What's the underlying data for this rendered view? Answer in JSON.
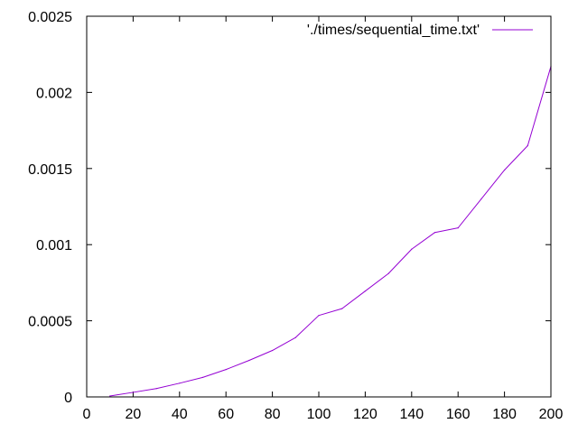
{
  "chart_data": {
    "type": "line",
    "title": "",
    "xlabel": "",
    "ylabel": "",
    "xlim": [
      0,
      200
    ],
    "ylim": [
      0,
      0.0025
    ],
    "grid": false,
    "legend_position": "top-right",
    "x_ticks": [
      0,
      20,
      40,
      60,
      80,
      100,
      120,
      140,
      160,
      180,
      200
    ],
    "x_tick_labels": [
      "0",
      "20",
      "40",
      "60",
      "80",
      "100",
      "120",
      "140",
      "160",
      "180",
      "200"
    ],
    "y_ticks": [
      0,
      0.0005,
      0.001,
      0.0015,
      0.002,
      0.0025
    ],
    "y_tick_labels": [
      "0",
      "0.0005",
      "0.001",
      "0.0015",
      "0.002",
      "0.0025"
    ],
    "series": [
      {
        "name": "'./times/sequential_time.txt'",
        "color": "#9400d3",
        "x": [
          10,
          20,
          30,
          40,
          50,
          60,
          70,
          80,
          90,
          100,
          110,
          120,
          130,
          140,
          150,
          160,
          170,
          180,
          190,
          200
        ],
        "y": [
          6e-06,
          3e-05,
          5.5e-05,
          9e-05,
          0.000128,
          0.00018,
          0.00024,
          0.000305,
          0.00039,
          0.000535,
          0.00058,
          0.000695,
          0.00081,
          0.00097,
          0.00108,
          0.00111,
          0.0013,
          0.00149,
          0.00165,
          0.00217
        ]
      }
    ]
  }
}
